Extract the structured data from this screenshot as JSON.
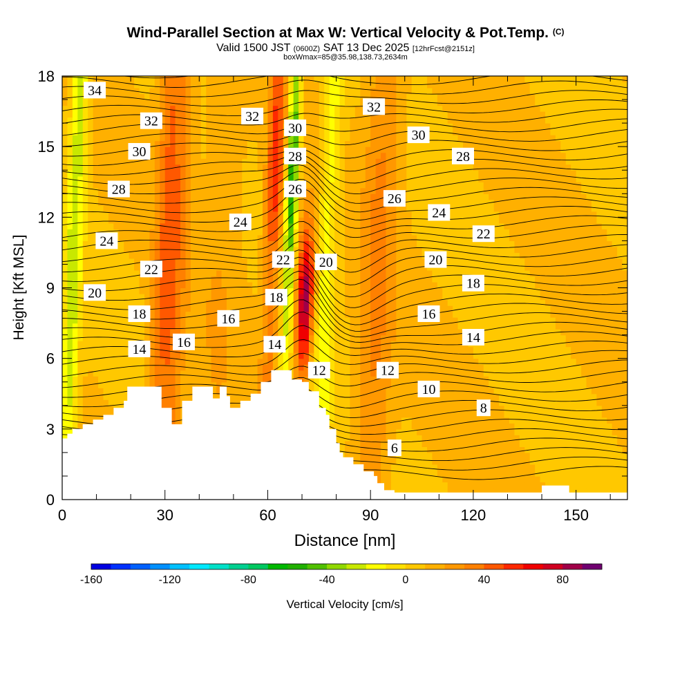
{
  "header": {
    "title": "Wind-Parallel Section at Max W: Vertical Velocity & Pot.Temp.",
    "copyright": "(C)",
    "valid_prefix": "Valid 1500 JST",
    "valid_utc": "(0600Z)",
    "valid_date": "SAT 13 Dec 2025",
    "forecast_info": "[12hrFcst@2151z]",
    "box_info": "boxWmax=85@35.98,138.73,2634m"
  },
  "chart_data": {
    "type": "heatmap",
    "xlabel": "Distance [nm]",
    "ylabel": "Height [Kft MSL]",
    "xlim": [
      0,
      165
    ],
    "ylim": [
      0,
      18
    ],
    "x_ticks": [
      0,
      30,
      60,
      90,
      120,
      150
    ],
    "y_ticks": [
      0,
      3,
      6,
      9,
      12,
      15,
      18
    ],
    "colorbar": {
      "label": "Vertical Velocity [cm/s]",
      "range": [
        -160,
        100
      ],
      "step": 10,
      "ticks": [
        -160,
        -120,
        -80,
        -40,
        0,
        40,
        80
      ],
      "colors": [
        "#0000e0",
        "#0030ff",
        "#0060ff",
        "#0090ff",
        "#00c0ff",
        "#00e8ff",
        "#00e0c8",
        "#00d090",
        "#00c860",
        "#00b800",
        "#20b000",
        "#50c000",
        "#90d800",
        "#c8e800",
        "#ffff00",
        "#ffe000",
        "#ffc800",
        "#ffb000",
        "#ff9800",
        "#ff8000",
        "#ff5800",
        "#ff2800",
        "#f00000",
        "#d00020",
        "#a00048",
        "#700070"
      ]
    },
    "terrain_profile": [
      [
        0,
        2.6
      ],
      [
        1.5,
        2.6
      ],
      [
        1.5,
        2.8
      ],
      [
        3,
        2.8
      ],
      [
        3,
        3.0
      ],
      [
        6,
        3.0
      ],
      [
        6,
        3.2
      ],
      [
        9,
        3.2
      ],
      [
        9,
        3.4
      ],
      [
        12,
        3.4
      ],
      [
        12,
        3.6
      ],
      [
        15,
        3.6
      ],
      [
        15,
        3.9
      ],
      [
        18,
        3.9
      ],
      [
        18,
        4.2
      ],
      [
        19,
        4.2
      ],
      [
        19,
        4.8
      ],
      [
        29,
        4.8
      ],
      [
        29,
        3.9
      ],
      [
        32,
        3.9
      ],
      [
        32,
        3.2
      ],
      [
        35,
        3.2
      ],
      [
        35,
        4.2
      ],
      [
        38,
        4.2
      ],
      [
        38,
        4.8
      ],
      [
        44,
        4.8
      ],
      [
        44,
        4.3
      ],
      [
        46,
        4.3
      ],
      [
        46,
        4.8
      ],
      [
        48,
        4.8
      ],
      [
        48,
        4.4
      ],
      [
        49,
        4.4
      ],
      [
        49,
        3.9
      ],
      [
        52,
        3.9
      ],
      [
        52,
        4.2
      ],
      [
        55,
        4.2
      ],
      [
        55,
        4.5
      ],
      [
        58,
        4.5
      ],
      [
        58,
        5.0
      ],
      [
        61,
        5.0
      ],
      [
        61,
        5.5
      ],
      [
        67,
        5.5
      ],
      [
        67,
        5.1
      ],
      [
        70,
        5.1
      ],
      [
        70,
        5.0
      ],
      [
        72,
        5.0
      ],
      [
        72,
        4.6
      ],
      [
        75,
        4.6
      ],
      [
        75,
        3.9
      ],
      [
        77,
        3.9
      ],
      [
        77,
        3.6
      ],
      [
        78,
        3.6
      ],
      [
        78,
        3.0
      ],
      [
        80,
        3.0
      ],
      [
        80,
        2.4
      ],
      [
        81,
        2.4
      ],
      [
        81,
        2.0
      ],
      [
        82,
        2.0
      ],
      [
        82,
        1.8
      ],
      [
        85,
        1.8
      ],
      [
        85,
        1.5
      ],
      [
        88,
        1.5
      ],
      [
        88,
        1.2
      ],
      [
        91,
        1.2
      ],
      [
        91,
        1.0
      ],
      [
        92,
        1.0
      ],
      [
        92,
        0.7
      ],
      [
        94,
        0.7
      ],
      [
        94,
        0.4
      ],
      [
        97,
        0.4
      ],
      [
        97,
        0.3
      ],
      [
        140,
        0.3
      ],
      [
        140,
        0.6
      ],
      [
        148,
        0.6
      ],
      [
        148,
        0.3
      ],
      [
        165,
        0.3
      ]
    ],
    "pot_temp_labels": [
      {
        "text": "34",
        "x": 9.5,
        "y": 17.4
      },
      {
        "text": "32",
        "x": 26,
        "y": 16.1
      },
      {
        "text": "30",
        "x": 22.5,
        "y": 14.8
      },
      {
        "text": "28",
        "x": 16.5,
        "y": 13.2
      },
      {
        "text": "24",
        "x": 13,
        "y": 11.0
      },
      {
        "text": "22",
        "x": 26,
        "y": 9.8
      },
      {
        "text": "20",
        "x": 9.5,
        "y": 8.8
      },
      {
        "text": "18",
        "x": 22.5,
        "y": 7.9
      },
      {
        "text": "14",
        "x": 22.5,
        "y": 6.4
      },
      {
        "text": "16",
        "x": 35.5,
        "y": 6.7
      },
      {
        "text": "16",
        "x": 48.5,
        "y": 7.7
      },
      {
        "text": "24",
        "x": 52,
        "y": 11.8
      },
      {
        "text": "32",
        "x": 55.5,
        "y": 16.3
      },
      {
        "text": "22",
        "x": 64.5,
        "y": 10.2
      },
      {
        "text": "18",
        "x": 62.5,
        "y": 8.6
      },
      {
        "text": "14",
        "x": 62,
        "y": 6.6
      },
      {
        "text": "30",
        "x": 68,
        "y": 15.8
      },
      {
        "text": "28",
        "x": 68,
        "y": 14.6
      },
      {
        "text": "26",
        "x": 68,
        "y": 13.2
      },
      {
        "text": "20",
        "x": 77,
        "y": 10.1
      },
      {
        "text": "12",
        "x": 75,
        "y": 5.5
      },
      {
        "text": "32",
        "x": 91,
        "y": 16.7
      },
      {
        "text": "30",
        "x": 104,
        "y": 15.5
      },
      {
        "text": "28",
        "x": 117,
        "y": 14.6
      },
      {
        "text": "26",
        "x": 97,
        "y": 12.8
      },
      {
        "text": "24",
        "x": 110,
        "y": 12.2
      },
      {
        "text": "22",
        "x": 123,
        "y": 11.3
      },
      {
        "text": "20",
        "x": 109,
        "y": 10.2
      },
      {
        "text": "18",
        "x": 120,
        "y": 9.2
      },
      {
        "text": "16",
        "x": 107,
        "y": 7.9
      },
      {
        "text": "14",
        "x": 120,
        "y": 6.9
      },
      {
        "text": "12",
        "x": 95,
        "y": 5.5
      },
      {
        "text": "10",
        "x": 107,
        "y": 4.7
      },
      {
        "text": "8",
        "x": 123,
        "y": 3.9
      },
      {
        "text": "6",
        "x": 97,
        "y": 2.2
      }
    ],
    "w_bands": [
      {
        "x": 3,
        "w": 2.5,
        "amp": -35
      },
      {
        "x": 30,
        "w": 3.5,
        "amp": 30
      },
      {
        "x": 34,
        "w": 3,
        "amp": 15
      },
      {
        "x": 61,
        "w": 2.5,
        "amp": 50
      },
      {
        "x": 66,
        "w": 1.8,
        "amp": -70
      },
      {
        "x": 71,
        "w": 2.5,
        "amp": 80
      },
      {
        "x": 77,
        "w": 3,
        "amp": -25
      },
      {
        "x": 92,
        "w": 5,
        "amp": 22
      },
      {
        "x": 46,
        "w": 6,
        "amp": 8
      }
    ]
  }
}
